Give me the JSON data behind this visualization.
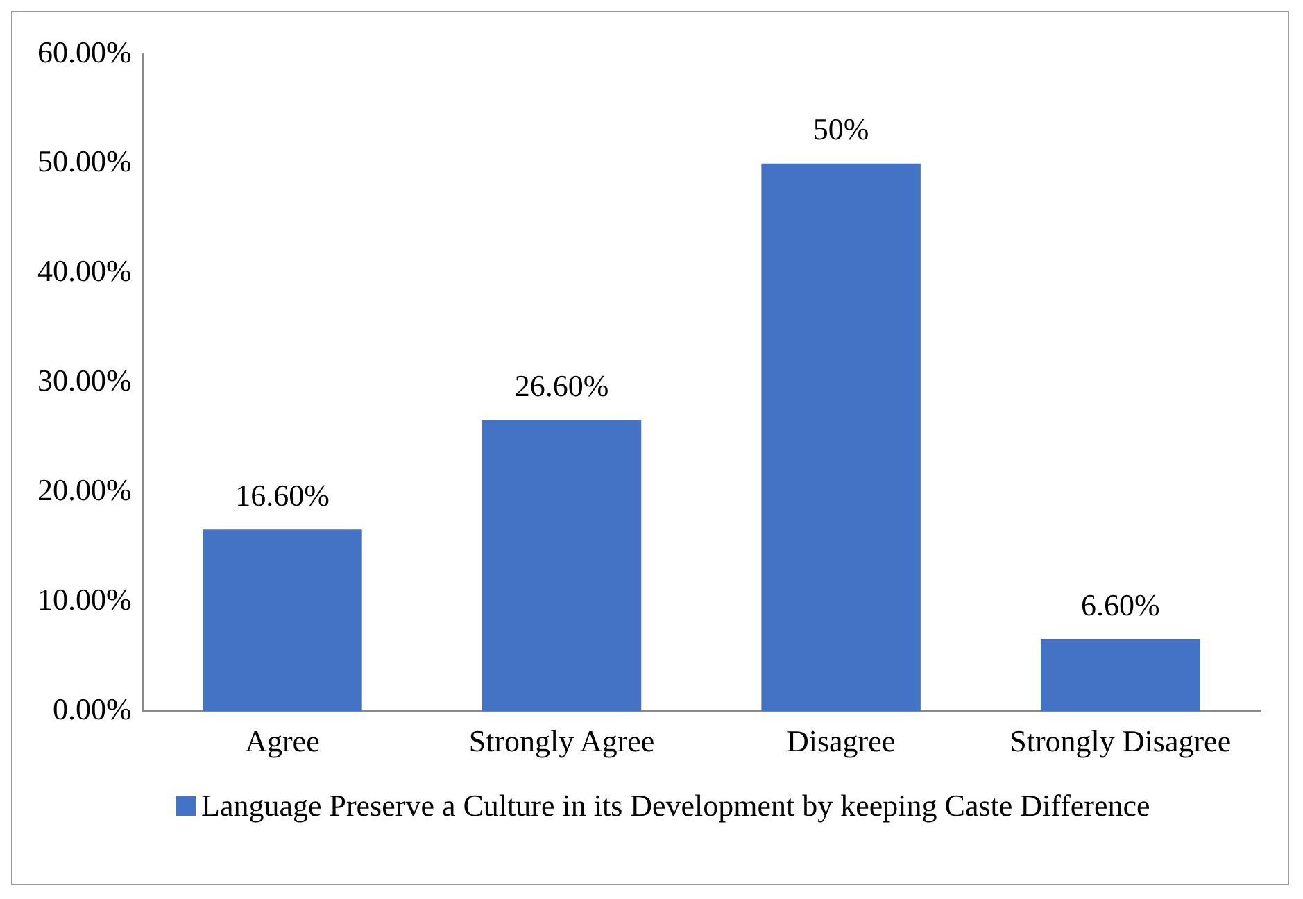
{
  "chart_data": {
    "type": "bar",
    "categories": [
      "Agree",
      "Strongly Agree",
      "Disagree",
      "Strongly Disagree"
    ],
    "series": [
      {
        "name": "Language Preserve a Culture in its Development by keeping Caste Difference",
        "color": "#4472c4",
        "values": [
          16.6,
          26.6,
          50,
          6.6
        ],
        "value_labels": [
          "16.60%",
          "26.60%",
          "50%",
          "6.60%"
        ]
      }
    ],
    "ylim": [
      0,
      60
    ],
    "yticks": [
      {
        "value": 0,
        "label": "0.00%"
      },
      {
        "value": 10,
        "label": "10.00%"
      },
      {
        "value": 20,
        "label": "20.00%"
      },
      {
        "value": 30,
        "label": "30.00%"
      },
      {
        "value": 40,
        "label": "40.00%"
      },
      {
        "value": 50,
        "label": "50.00%"
      },
      {
        "value": 60,
        "label": "60.00%"
      }
    ],
    "grid": false,
    "legend": "bottom"
  }
}
